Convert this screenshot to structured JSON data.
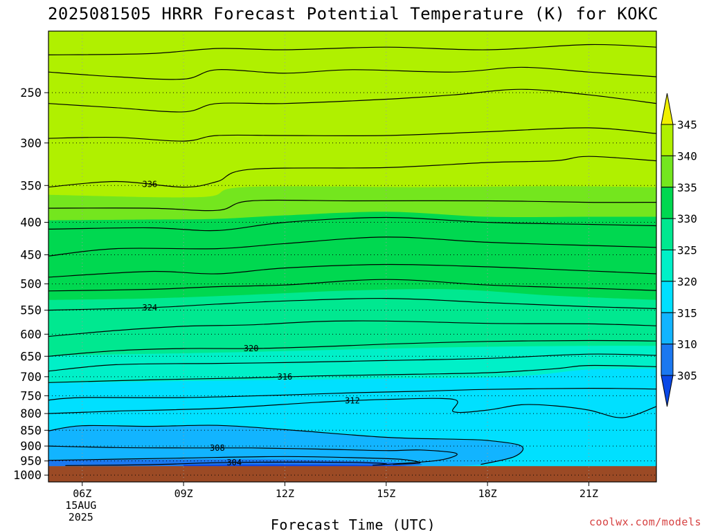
{
  "chart_data": {
    "type": "contour",
    "title": "2025081505 HRRR Forecast Potential Temperature (K) for KOKC",
    "xlabel": "Forecast Time (UTC)",
    "ylabel": "",
    "y_axis": "pressure (hPa), log scale, decreasing upward",
    "ylim": [
      1025,
      200
    ],
    "xlim": [
      5.0,
      23.0
    ],
    "x_ticks": [
      {
        "hour": 6,
        "label": "06Z",
        "sub1": "15AUG",
        "sub2": "2025"
      },
      {
        "hour": 9,
        "label": "09Z"
      },
      {
        "hour": 12,
        "label": "12Z"
      },
      {
        "hour": 15,
        "label": "15Z"
      },
      {
        "hour": 18,
        "label": "18Z"
      },
      {
        "hour": 21,
        "label": "21Z"
      }
    ],
    "y_ticks": [
      {
        "p": 250,
        "label": "250"
      },
      {
        "p": 300,
        "label": "300"
      },
      {
        "p": 350,
        "label": "350"
      },
      {
        "p": 400,
        "label": "400"
      },
      {
        "p": 450,
        "label": "450"
      },
      {
        "p": 500,
        "label": "500"
      },
      {
        "p": 550,
        "label": "550"
      },
      {
        "p": 600,
        "label": "600"
      },
      {
        "p": 650,
        "label": "650"
      },
      {
        "p": 700,
        "label": "700"
      },
      {
        "p": 750,
        "label": "750"
      },
      {
        "p": 800,
        "label": "800"
      },
      {
        "p": 850,
        "label": "850"
      },
      {
        "p": 900,
        "label": "900"
      },
      {
        "p": 950,
        "label": "950"
      },
      {
        "p": 1000,
        "label": "1000"
      }
    ],
    "grid": "dotted",
    "surface_pressure_hPa": 968,
    "surface_color": "#9b4a25",
    "colorbar": {
      "location": "right",
      "levels": [
        305,
        310,
        315,
        320,
        325,
        330,
        335,
        340,
        345
      ],
      "labels": [
        "305",
        "310",
        "315",
        "320",
        "325",
        "330",
        "335",
        "340",
        "345"
      ],
      "colors": [
        "#0a48e6",
        "#1b78f0",
        "#12b4ff",
        "#00e0ff",
        "#00f0c8",
        "#00e890",
        "#00d850",
        "#74e61e",
        "#b0f000",
        "#f0f000"
      ]
    },
    "fill_bands": [
      {
        "level": 340,
        "color": "#b0f000",
        "pressure_hPa": [
          [
            5.0,
            200
          ],
          [
            23.0,
            200
          ]
        ]
      },
      {
        "level": 335,
        "color": "#74e61e",
        "pressure_hPa": [
          [
            5.0,
            362
          ],
          [
            9.5,
            365
          ],
          [
            10.8,
            352
          ],
          [
            16,
            352
          ],
          [
            20,
            351
          ],
          [
            23.0,
            352
          ]
        ]
      },
      {
        "level": 330,
        "color": "#00d850",
        "pressure_hPa": [
          [
            5.0,
            397
          ],
          [
            8,
            396
          ],
          [
            10,
            395
          ],
          [
            12,
            390
          ],
          [
            15,
            385
          ],
          [
            18,
            392
          ],
          [
            21,
            392
          ],
          [
            23.0,
            392
          ]
        ]
      },
      {
        "level": 325,
        "color": "#00e890",
        "pressure_hPa": [
          [
            5.0,
            530
          ],
          [
            8,
            527
          ],
          [
            11,
            520
          ],
          [
            14,
            512
          ],
          [
            17,
            510
          ],
          [
            20,
            522
          ],
          [
            23.0,
            530
          ]
        ]
      },
      {
        "level": 320,
        "color": "#00f0c8",
        "pressure_hPa": [
          [
            5.0,
            648
          ],
          [
            9,
            643
          ],
          [
            12,
            638
          ],
          [
            15,
            632
          ],
          [
            18,
            628
          ],
          [
            21,
            626
          ],
          [
            23.0,
            626
          ]
        ]
      },
      {
        "level": 315,
        "color": "#00e0ff",
        "pressure_hPa": [
          [
            5.0,
            716
          ],
          [
            10,
            710
          ],
          [
            15,
            705
          ],
          [
            18,
            702
          ],
          [
            19.5,
            695
          ],
          [
            21,
            682
          ],
          [
            23.0,
            680
          ]
        ]
      },
      {
        "level": 310,
        "color": "#12b4ff",
        "pressure_hPa": [
          [
            5.0,
            850
          ],
          [
            6,
            836
          ],
          [
            8,
            840
          ],
          [
            10,
            835
          ],
          [
            12,
            848
          ],
          [
            15,
            872
          ],
          [
            17,
            880
          ],
          [
            18,
            884
          ],
          [
            19,
            900
          ],
          [
            18.8,
            935
          ],
          [
            17.8,
            962
          ],
          [
            16,
            970
          ],
          [
            13,
            975
          ],
          [
            10,
            974
          ],
          [
            7,
            972
          ],
          [
            5.0,
            972
          ]
        ]
      },
      {
        "level": 305,
        "color": "#1b78f0",
        "pressure_hPa": [
          [
            5.0,
            948
          ],
          [
            9,
            945
          ],
          [
            12,
            945
          ],
          [
            14.5,
            952
          ],
          [
            16,
            960
          ],
          [
            15.5,
            968
          ],
          [
            13,
            970
          ],
          [
            9,
            969
          ],
          [
            6,
            968
          ],
          [
            5.0,
            968
          ]
        ]
      },
      {
        "level": 300,
        "color": "#0a48e6",
        "pressure_hPa": [
          [
            9,
            963
          ],
          [
            12,
            962
          ],
          [
            14.8,
            964
          ],
          [
            15.5,
            968
          ],
          [
            13,
            969
          ],
          [
            9,
            968
          ]
        ]
      }
    ],
    "contours": [
      {
        "level": 344,
        "pressure_hPa": [
          [
            5.0,
            218
          ],
          [
            8,
            217
          ],
          [
            10,
            213
          ],
          [
            12,
            214
          ],
          [
            15,
            212
          ],
          [
            18,
            214
          ],
          [
            21,
            210
          ],
          [
            23.0,
            212
          ]
        ]
      },
      {
        "level": 342,
        "pressure_hPa": [
          [
            5.0,
            232
          ],
          [
            7,
            236
          ],
          [
            9,
            238
          ],
          [
            10,
            230
          ],
          [
            12,
            233
          ],
          [
            14,
            230
          ],
          [
            17,
            232
          ],
          [
            19,
            228
          ],
          [
            21,
            232
          ],
          [
            23.0,
            236
          ]
        ]
      },
      {
        "level": 340,
        "pressure_hPa": [
          [
            5.0,
            260
          ],
          [
            7,
            264
          ],
          [
            9,
            268
          ],
          [
            10,
            260
          ],
          [
            12,
            260
          ],
          [
            15,
            256
          ],
          [
            17,
            252
          ],
          [
            19,
            247
          ],
          [
            21,
            252
          ],
          [
            23.0,
            260
          ]
        ]
      },
      {
        "level": 338,
        "pressure_hPa": [
          [
            5.0,
            295
          ],
          [
            7,
            294
          ],
          [
            9,
            298
          ],
          [
            10,
            292
          ],
          [
            12,
            292
          ],
          [
            15,
            292
          ],
          [
            18,
            288
          ],
          [
            21,
            284
          ],
          [
            23.0,
            290
          ]
        ]
      },
      {
        "level": 336,
        "label": "336",
        "label_x": 8.0,
        "pressure_hPa": [
          [
            5.0,
            352
          ],
          [
            7,
            345
          ],
          [
            9,
            352
          ],
          [
            10,
            345
          ],
          [
            11,
            330
          ],
          [
            15,
            328
          ],
          [
            18,
            322
          ],
          [
            20,
            320
          ],
          [
            21,
            315
          ],
          [
            23.0,
            320
          ]
        ]
      },
      {
        "level": 334,
        "pressure_hPa": [
          [
            5.0,
            380
          ],
          [
            8,
            380
          ],
          [
            10,
            383
          ],
          [
            11,
            370
          ],
          [
            14,
            370
          ],
          [
            18,
            370
          ],
          [
            21,
            372
          ],
          [
            23.0,
            372
          ]
        ]
      },
      {
        "level": 332,
        "pressure_hPa": [
          [
            5.0,
            410
          ],
          [
            8,
            408
          ],
          [
            10,
            412
          ],
          [
            12,
            400
          ],
          [
            15,
            393
          ],
          [
            18,
            400
          ],
          [
            21,
            403
          ],
          [
            23.0,
            405
          ]
        ]
      },
      {
        "level": 330,
        "pressure_hPa": [
          [
            5.0,
            452
          ],
          [
            7,
            440
          ],
          [
            10,
            440
          ],
          [
            12,
            432
          ],
          [
            15,
            422
          ],
          [
            18,
            430
          ],
          [
            21,
            435
          ],
          [
            23.0,
            438
          ]
        ]
      },
      {
        "level": 328,
        "pressure_hPa": [
          [
            5.0,
            488
          ],
          [
            8,
            478
          ],
          [
            10,
            482
          ],
          [
            12,
            472
          ],
          [
            15,
            466
          ],
          [
            18,
            470
          ],
          [
            21,
            477
          ],
          [
            23.0,
            482
          ]
        ]
      },
      {
        "level": 326,
        "pressure_hPa": [
          [
            5.0,
            513
          ],
          [
            8,
            510
          ],
          [
            10,
            505
          ],
          [
            12,
            502
          ],
          [
            15,
            492
          ],
          [
            18,
            502
          ],
          [
            21,
            508
          ],
          [
            23.0,
            512
          ]
        ]
      },
      {
        "level": 324,
        "label": "324",
        "label_x": 8.0,
        "pressure_hPa": [
          [
            5.0,
            550
          ],
          [
            8,
            545
          ],
          [
            10,
            538
          ],
          [
            12,
            532
          ],
          [
            15,
            527
          ],
          [
            18,
            535
          ],
          [
            21,
            543
          ],
          [
            23.0,
            547
          ]
        ]
      },
      {
        "level": 322,
        "pressure_hPa": [
          [
            5.0,
            605
          ],
          [
            7,
            592
          ],
          [
            9,
            583
          ],
          [
            11,
            580
          ],
          [
            13,
            573
          ],
          [
            15,
            572
          ],
          [
            18,
            577
          ],
          [
            21,
            578
          ],
          [
            23.0,
            582
          ]
        ]
      },
      {
        "level": 320,
        "label": "320",
        "label_x": 11.0,
        "pressure_hPa": [
          [
            5.0,
            650
          ],
          [
            7,
            637
          ],
          [
            9,
            632
          ],
          [
            11,
            632
          ],
          [
            13,
            628
          ],
          [
            15,
            622
          ],
          [
            18,
            616
          ],
          [
            21,
            614
          ],
          [
            23.0,
            615
          ]
        ]
      },
      {
        "level": 318,
        "pressure_hPa": [
          [
            5.0,
            686
          ],
          [
            7,
            670
          ],
          [
            10,
            667
          ],
          [
            12,
            665
          ],
          [
            15,
            660
          ],
          [
            18,
            655
          ],
          [
            21,
            645
          ],
          [
            23.0,
            648
          ]
        ]
      },
      {
        "level": 316,
        "label": "316",
        "label_x": 12.0,
        "pressure_hPa": [
          [
            5.0,
            715
          ],
          [
            8,
            708
          ],
          [
            11,
            703
          ],
          [
            13,
            698
          ],
          [
            15,
            695
          ],
          [
            18,
            690
          ],
          [
            20,
            680
          ],
          [
            21,
            672
          ],
          [
            23.0,
            675
          ]
        ]
      },
      {
        "level": 314,
        "pressure_hPa": [
          [
            5.0,
            762
          ],
          [
            6,
            755
          ],
          [
            9,
            755
          ],
          [
            12,
            748
          ],
          [
            14,
            742
          ],
          [
            16,
            738
          ],
          [
            18,
            733
          ],
          [
            21,
            730
          ],
          [
            23.0,
            732
          ]
        ]
      },
      {
        "level": 312,
        "label": "312",
        "label_x": 14.0,
        "pressure_hPa": [
          [
            5.0,
            800
          ],
          [
            7,
            793
          ],
          [
            10,
            785
          ],
          [
            13,
            768
          ],
          [
            15,
            760
          ],
          [
            17,
            760
          ],
          [
            17.0,
            795
          ],
          [
            18,
            790
          ],
          [
            19,
            775
          ],
          [
            20,
            778
          ],
          [
            21,
            790
          ],
          [
            22,
            812
          ],
          [
            23.0,
            780
          ]
        ]
      },
      {
        "level": 310,
        "pressure_hPa": [
          [
            5.0,
            852
          ],
          [
            6,
            836
          ],
          [
            8,
            838
          ],
          [
            10,
            835
          ],
          [
            12,
            848
          ],
          [
            15,
            872
          ],
          [
            17,
            878
          ],
          [
            18,
            882
          ],
          [
            19,
            900
          ],
          [
            18.8,
            935
          ],
          [
            17.8,
            962
          ]
        ]
      },
      {
        "level": 308,
        "label": "308",
        "label_x": 10.0,
        "pressure_hPa": [
          [
            5.0,
            900
          ],
          [
            7,
            905
          ],
          [
            9,
            906
          ],
          [
            11,
            906
          ],
          [
            13,
            910
          ],
          [
            15,
            915
          ],
          [
            16,
            913
          ],
          [
            17,
            922
          ],
          [
            17.0,
            935
          ],
          [
            16.4,
            950
          ],
          [
            15.0,
            962
          ]
        ]
      },
      {
        "level": 306,
        "pressure_hPa": [
          [
            5.0,
            948
          ],
          [
            9,
            940
          ],
          [
            12,
            935
          ],
          [
            14.5,
            940
          ],
          [
            15.5,
            945
          ],
          [
            16,
            957
          ],
          [
            15.2,
            962
          ]
        ]
      },
      {
        "level": 304,
        "label": "304",
        "label_x": 10.5,
        "pressure_hPa": [
          [
            5.5,
            966
          ],
          [
            8,
            963
          ],
          [
            10,
            956
          ],
          [
            12,
            954
          ],
          [
            14,
            955
          ],
          [
            15,
            960
          ],
          [
            14.6,
            965
          ]
        ]
      }
    ]
  },
  "credit": "coolwx.com/models"
}
